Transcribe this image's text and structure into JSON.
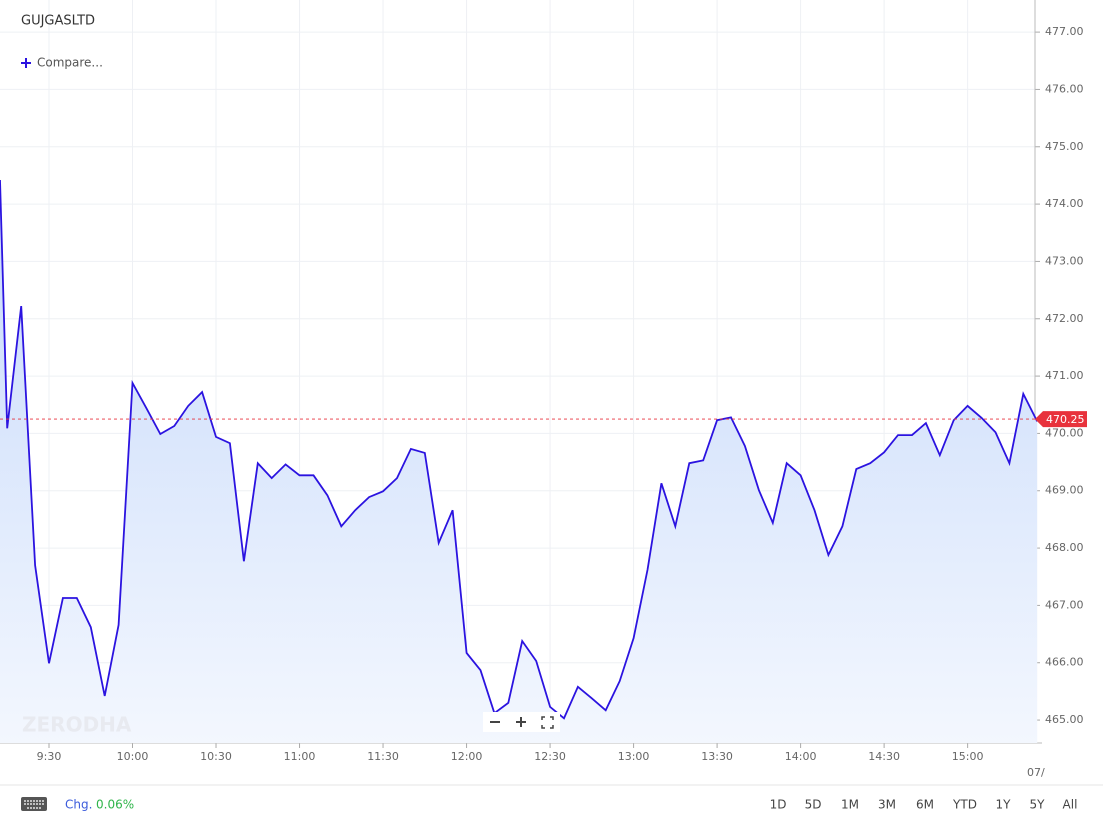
{
  "header": {
    "symbol": "GUJGASLTD",
    "compare": "Compare..."
  },
  "watermark": "ZERODHA",
  "chart_data": {
    "type": "line",
    "color": "#2b13e0",
    "fill_top": "#c6d9fb",
    "fill_bottom": "#f3f7fe",
    "grid": true,
    "x": [
      552.4,
      555,
      560,
      565,
      570,
      575,
      580,
      585,
      590,
      595,
      600,
      605,
      610,
      615,
      620,
      625,
      630,
      635,
      640,
      645,
      650,
      655,
      660,
      665,
      670,
      675,
      680,
      685,
      690,
      695,
      700,
      705,
      710,
      715,
      720,
      725,
      730,
      735,
      740,
      745,
      750,
      755,
      760,
      765,
      770,
      775,
      780,
      785,
      790,
      795,
      800,
      805,
      810,
      815,
      820,
      825,
      830,
      835,
      840,
      845,
      850,
      855,
      860,
      865,
      870,
      875,
      880,
      885,
      890,
      895,
      900,
      905,
      910,
      915,
      920,
      925
    ],
    "values": [
      474.42,
      470.09,
      472.22,
      467.7,
      465.99,
      467.13,
      467.13,
      466.62,
      465.42,
      466.66,
      470.88,
      470.44,
      469.99,
      470.13,
      470.48,
      470.72,
      469.94,
      469.83,
      467.77,
      469.48,
      469.22,
      469.46,
      469.27,
      469.27,
      468.92,
      468.38,
      468.66,
      468.89,
      468.99,
      469.22,
      469.73,
      469.66,
      468.09,
      468.66,
      466.17,
      465.87,
      465.12,
      465.3,
      466.38,
      466.03,
      465.23,
      465.03,
      465.58,
      465.38,
      465.17,
      465.68,
      466.43,
      467.62,
      469.13,
      468.38,
      469.48,
      469.53,
      470.23,
      470.28,
      469.78,
      469.01,
      468.44,
      469.48,
      469.27,
      468.66,
      467.88,
      468.38,
      469.38,
      469.48,
      469.67,
      469.97,
      469.97,
      470.18,
      469.62,
      470.23,
      470.48,
      470.27,
      470.02,
      469.48,
      470.69,
      470.21
    ],
    "xlim": [
      552.4,
      924.2
    ],
    "xticks": [
      {
        "value": 570,
        "label": "9:30"
      },
      {
        "value": 600,
        "label": "10:00"
      },
      {
        "value": 630,
        "label": "10:30"
      },
      {
        "value": 660,
        "label": "11:00"
      },
      {
        "value": 690,
        "label": "11:30"
      },
      {
        "value": 720,
        "label": "12:00"
      },
      {
        "value": 750,
        "label": "12:30"
      },
      {
        "value": 780,
        "label": "13:00"
      },
      {
        "value": 810,
        "label": "13:30"
      },
      {
        "value": 840,
        "label": "14:00"
      },
      {
        "value": 870,
        "label": "14:30"
      },
      {
        "value": 900,
        "label": "15:00"
      }
    ],
    "date_label": "07/",
    "ylim": [
      464.6,
      477.56
    ],
    "yticks": [
      {
        "value": 465,
        "label": "465.00"
      },
      {
        "value": 466,
        "label": "466.00"
      },
      {
        "value": 467,
        "label": "467.00"
      },
      {
        "value": 468,
        "label": "468.00"
      },
      {
        "value": 469,
        "label": "469.00"
      },
      {
        "value": 470,
        "label": "470.00"
      },
      {
        "value": 471,
        "label": "471.00"
      },
      {
        "value": 472,
        "label": "472.00"
      },
      {
        "value": 473,
        "label": "473.00"
      },
      {
        "value": 474,
        "label": "474.00"
      },
      {
        "value": 475,
        "label": "475.00"
      },
      {
        "value": 476,
        "label": "476.00"
      },
      {
        "value": 477,
        "label": "477.00"
      }
    ],
    "last_price": 470.25,
    "last_price_color": "#e8323c"
  },
  "footer": {
    "change_label": "Chg.",
    "change_value": "0.06%",
    "ranges": [
      "1D",
      "5D",
      "1M",
      "3M",
      "6M",
      "YTD",
      "1Y",
      "5Y",
      "All"
    ]
  }
}
